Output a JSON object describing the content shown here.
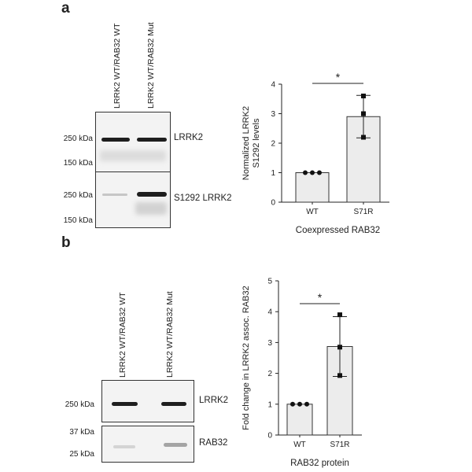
{
  "panel_a": {
    "letter": "a",
    "lanes": [
      "LRRK2 WT/RAB32 WT",
      "LRRK2 WT/RAB32 Mut"
    ],
    "blot_top": {
      "name": "LRRK2",
      "markers": [
        "250 kDa",
        "150 kDa"
      ]
    },
    "blot_bottom": {
      "name": "S1292 LRRK2",
      "markers": [
        "250 kDa",
        "150 kDa"
      ]
    },
    "significance": "*"
  },
  "panel_b": {
    "letter": "b",
    "lanes": [
      "LRRK2 WT/RAB32 WT",
      "LRRK2 WT/RAB32 Mut"
    ],
    "blot_top": {
      "name": "LRRK2",
      "markers": [
        "250 kDa"
      ]
    },
    "blot_bottom": {
      "name": "RAB32",
      "markers": [
        "37 kDa",
        "25 kDa"
      ]
    },
    "significance": "*"
  },
  "chart_data": [
    {
      "type": "bar",
      "categories": [
        "WT",
        "S71R"
      ],
      "values": [
        1.0,
        2.9
      ],
      "error": [
        0.0,
        0.72
      ],
      "points": [
        [
          1.0,
          1.0,
          1.0
        ],
        [
          3.6,
          3.0,
          2.2
        ]
      ],
      "ylabel": "Normalized LRRK2\nS1292 levels",
      "xlabel": "Coexpressed RAB32",
      "ylim": [
        0,
        4
      ],
      "yticks": [
        "0",
        "1",
        "2",
        "3",
        "4"
      ]
    },
    {
      "type": "bar",
      "categories": [
        "WT",
        "S71R"
      ],
      "values": [
        1.0,
        2.87
      ],
      "error": [
        0.0,
        0.97
      ],
      "points": [
        [
          1.0,
          1.0,
          1.0
        ],
        [
          3.9,
          2.85,
          1.93
        ]
      ],
      "ylabel": "Fold change in LRRK2 assoc. RAB32",
      "xlabel": "RAB32 protein",
      "ylim": [
        0,
        5
      ],
      "yticks": [
        "0",
        "1",
        "2",
        "3",
        "4",
        "5"
      ]
    }
  ]
}
